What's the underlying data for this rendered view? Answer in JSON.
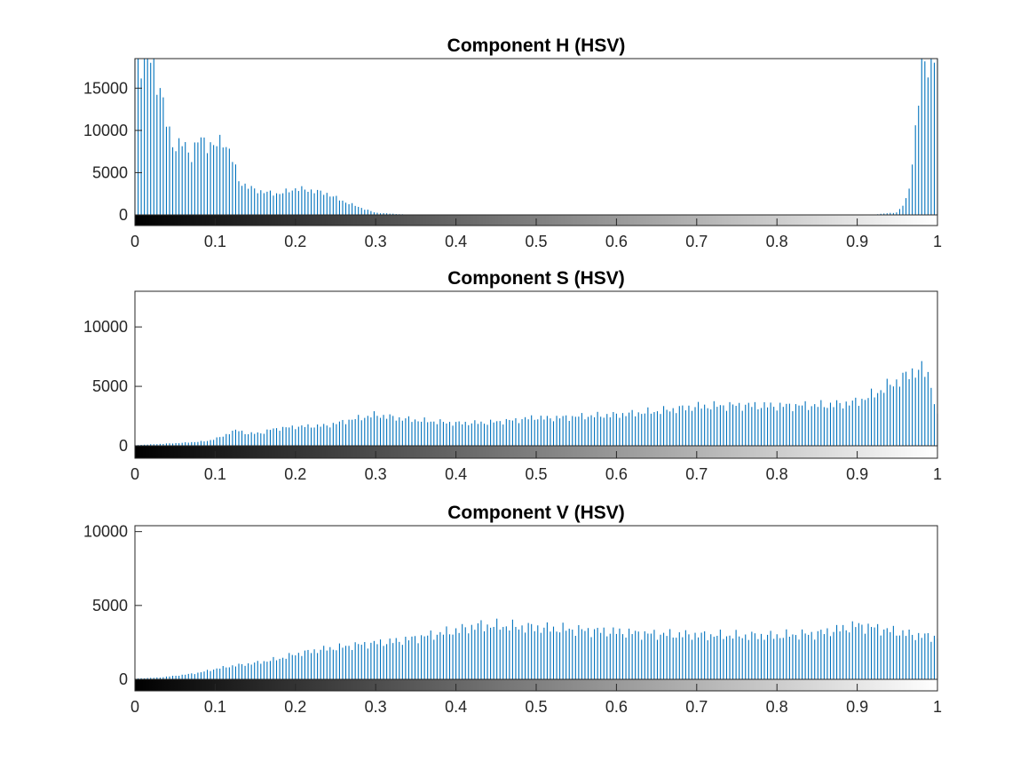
{
  "bar_color": "#0072BD",
  "chart_data": [
    {
      "type": "bar",
      "title": "Component H (HSV)",
      "xlabel": "",
      "ylabel": "",
      "xlim": [
        0,
        1
      ],
      "ylim": [
        -1400,
        18500
      ],
      "xticks": [
        0,
        0.1,
        0.2,
        0.3,
        0.4,
        0.5,
        0.6,
        0.7,
        0.8,
        0.9,
        1
      ],
      "xtick_labels": [
        "0",
        "0.1",
        "0.2",
        "0.3",
        "0.4",
        "0.5",
        "0.6",
        "0.7",
        "0.8",
        "0.9",
        "1"
      ],
      "yticks": [
        0,
        5000,
        10000,
        15000
      ],
      "ytick_labels": [
        "0",
        "5000",
        "10000",
        "15000"
      ],
      "colorbar": true,
      "grid": false,
      "bins": 256,
      "profile_points": [
        [
          0,
          18500
        ],
        [
          0.012,
          18500
        ],
        [
          0.02,
          18500
        ],
        [
          0.025,
          17000
        ],
        [
          0.03,
          15500
        ],
        [
          0.035,
          13000
        ],
        [
          0.04,
          10500
        ],
        [
          0.05,
          8000
        ],
        [
          0.06,
          8500
        ],
        [
          0.07,
          7000
        ],
        [
          0.08,
          9000
        ],
        [
          0.09,
          8500
        ],
        [
          0.1,
          8000
        ],
        [
          0.11,
          9000
        ],
        [
          0.12,
          7000
        ],
        [
          0.13,
          4000
        ],
        [
          0.14,
          3300
        ],
        [
          0.16,
          2700
        ],
        [
          0.18,
          2500
        ],
        [
          0.2,
          3100
        ],
        [
          0.22,
          2900
        ],
        [
          0.24,
          2500
        ],
        [
          0.26,
          1600
        ],
        [
          0.28,
          900
        ],
        [
          0.3,
          250
        ],
        [
          0.33,
          80
        ],
        [
          0.35,
          0
        ],
        [
          0.9,
          0
        ],
        [
          0.92,
          40
        ],
        [
          0.95,
          300
        ],
        [
          0.96,
          1500
        ],
        [
          0.965,
          3500
        ],
        [
          0.97,
          7500
        ],
        [
          0.975,
          12000
        ],
        [
          0.98,
          17000
        ],
        [
          0.985,
          18500
        ],
        [
          1,
          18500
        ]
      ]
    },
    {
      "type": "bar",
      "title": "Component S (HSV)",
      "xlabel": "",
      "ylabel": "",
      "xlim": [
        0,
        1
      ],
      "ylim": [
        -1000,
        13000
      ],
      "xticks": [
        0,
        0.1,
        0.2,
        0.3,
        0.4,
        0.5,
        0.6,
        0.7,
        0.8,
        0.9,
        1
      ],
      "xtick_labels": [
        "0",
        "0.1",
        "0.2",
        "0.3",
        "0.4",
        "0.5",
        "0.6",
        "0.7",
        "0.8",
        "0.9",
        "1"
      ],
      "yticks": [
        0,
        5000,
        10000
      ],
      "ytick_labels": [
        "0",
        "5000",
        "10000"
      ],
      "colorbar": true,
      "grid": false,
      "bins": 256,
      "profile_points": [
        [
          0,
          50
        ],
        [
          0.03,
          150
        ],
        [
          0.06,
          250
        ],
        [
          0.09,
          400
        ],
        [
          0.1,
          600
        ],
        [
          0.11,
          800
        ],
        [
          0.12,
          1200
        ],
        [
          0.13,
          1300
        ],
        [
          0.14,
          1000
        ],
        [
          0.16,
          1100
        ],
        [
          0.17,
          1400
        ],
        [
          0.2,
          1600
        ],
        [
          0.24,
          1700
        ],
        [
          0.27,
          2200
        ],
        [
          0.3,
          2600
        ],
        [
          0.33,
          2300
        ],
        [
          0.36,
          2100
        ],
        [
          0.4,
          1900
        ],
        [
          0.44,
          1950
        ],
        [
          0.48,
          2200
        ],
        [
          0.5,
          2400
        ],
        [
          0.51,
          2300
        ],
        [
          0.55,
          2450
        ],
        [
          0.6,
          2600
        ],
        [
          0.65,
          2900
        ],
        [
          0.7,
          3300
        ],
        [
          0.75,
          3400
        ],
        [
          0.8,
          3350
        ],
        [
          0.85,
          3400
        ],
        [
          0.88,
          3500
        ],
        [
          0.9,
          3700
        ],
        [
          0.92,
          4300
        ],
        [
          0.94,
          5100
        ],
        [
          0.96,
          5800
        ],
        [
          0.97,
          6300
        ],
        [
          0.98,
          6400
        ],
        [
          0.99,
          5900
        ],
        [
          1,
          2400
        ]
      ]
    },
    {
      "type": "bar",
      "title": "Component V (HSV)",
      "xlabel": "",
      "ylabel": "",
      "xlim": [
        0,
        1
      ],
      "ylim": [
        -900,
        10400
      ],
      "xticks": [
        0,
        0.1,
        0.2,
        0.3,
        0.4,
        0.5,
        0.6,
        0.7,
        0.8,
        0.9,
        1
      ],
      "xtick_labels": [
        "0",
        "0.1",
        "0.2",
        "0.3",
        "0.4",
        "0.5",
        "0.6",
        "0.7",
        "0.8",
        "0.9",
        "1"
      ],
      "yticks": [
        0,
        5000,
        10000
      ],
      "ytick_labels": [
        "0",
        "5000",
        "10000"
      ],
      "colorbar": true,
      "grid": false,
      "bins": 256,
      "profile_points": [
        [
          0,
          50
        ],
        [
          0.03,
          120
        ],
        [
          0.06,
          300
        ],
        [
          0.08,
          450
        ],
        [
          0.1,
          700
        ],
        [
          0.12,
          900
        ],
        [
          0.15,
          1100
        ],
        [
          0.18,
          1400
        ],
        [
          0.2,
          1700
        ],
        [
          0.23,
          2000
        ],
        [
          0.26,
          2200
        ],
        [
          0.28,
          2350
        ],
        [
          0.3,
          2450
        ],
        [
          0.33,
          2600
        ],
        [
          0.36,
          2900
        ],
        [
          0.38,
          3100
        ],
        [
          0.4,
          3300
        ],
        [
          0.43,
          3650
        ],
        [
          0.46,
          3600
        ],
        [
          0.5,
          3500
        ],
        [
          0.55,
          3350
        ],
        [
          0.6,
          3200
        ],
        [
          0.65,
          3050
        ],
        [
          0.7,
          3000
        ],
        [
          0.75,
          2950
        ],
        [
          0.8,
          2950
        ],
        [
          0.85,
          3100
        ],
        [
          0.88,
          3400
        ],
        [
          0.9,
          3650
        ],
        [
          0.92,
          3500
        ],
        [
          0.95,
          3200
        ],
        [
          0.97,
          3000
        ],
        [
          1,
          2850
        ]
      ]
    }
  ]
}
